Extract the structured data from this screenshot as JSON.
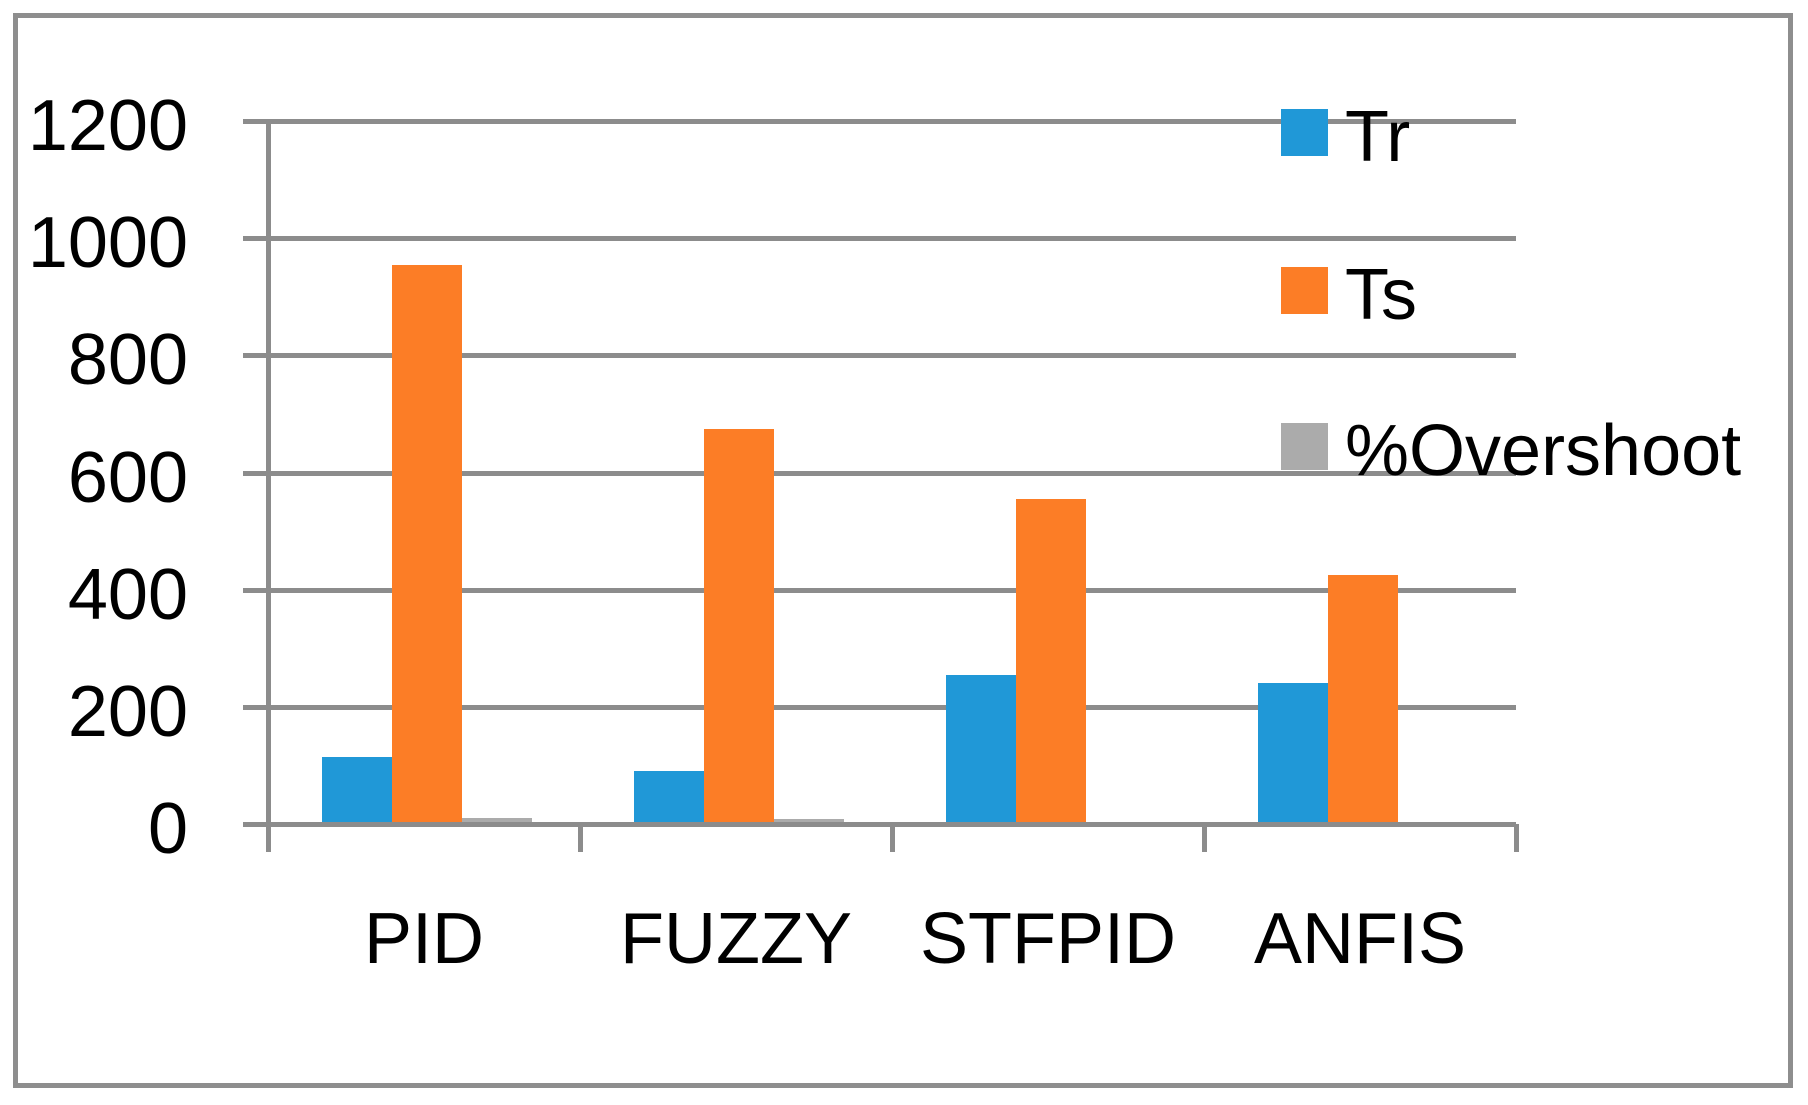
{
  "chart_data": {
    "type": "bar",
    "title": "",
    "xlabel": "",
    "ylabel": "",
    "categories": [
      "PID",
      "FUZZY",
      "STFPID",
      "ANFIS"
    ],
    "series": [
      {
        "name": "Tr",
        "color": "#2098D7",
        "values": [
          115,
          90,
          255,
          240
        ]
      },
      {
        "name": "Ts",
        "color": "#FC7D26",
        "values": [
          955,
          675,
          555,
          425
        ]
      },
      {
        "name": "%Overshoot",
        "color": "#ABABAB",
        "values": [
          10,
          8,
          0,
          0
        ]
      }
    ],
    "ylim": [
      0,
      1200
    ],
    "yticks": [
      0,
      200,
      400,
      600,
      800,
      1000,
      1200
    ],
    "ytick_labels": [
      "0",
      "200",
      "400",
      "600",
      "800",
      "1000",
      "1200"
    ],
    "grid": true,
    "legend_position": "right-overlay",
    "legend_labels": [
      "Tr",
      "Ts",
      "%Overshoot"
    ]
  },
  "colors": {
    "background": "#FFFFFF",
    "border": "#8E8E8E",
    "gridline": "#8C8C8C",
    "axis": "#8C8C8C",
    "text": "#000000"
  }
}
